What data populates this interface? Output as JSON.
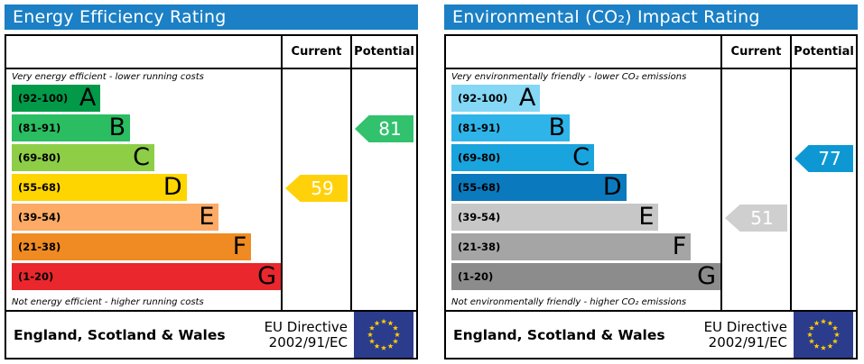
{
  "theme": {
    "header_bg": "#1b80c5",
    "border_color": "#000000",
    "flag_bg": "#2b3c8d",
    "flag_star": "#ffcc00"
  },
  "chart_data": [
    {
      "type": "bar",
      "title": "Energy Efficiency Rating",
      "columns": [
        "Current",
        "Potential"
      ],
      "top_caption": "Very energy efficient - lower running costs",
      "bottom_caption": "Not energy efficient - higher running costs",
      "bands": [
        {
          "letter": "A",
          "range": "(92-100)",
          "min": 92,
          "max": 100,
          "color": "#029a49",
          "width_pct": 33
        },
        {
          "letter": "B",
          "range": "(81-91)",
          "min": 81,
          "max": 91,
          "color": "#2abd62",
          "width_pct": 44
        },
        {
          "letter": "C",
          "range": "(69-80)",
          "min": 69,
          "max": 80,
          "color": "#8dce46",
          "width_pct": 53
        },
        {
          "letter": "D",
          "range": "(55-68)",
          "min": 55,
          "max": 68,
          "color": "#ffd500",
          "width_pct": 65
        },
        {
          "letter": "E",
          "range": "(39-54)",
          "min": 39,
          "max": 54,
          "color": "#fcaa65",
          "width_pct": 77
        },
        {
          "letter": "F",
          "range": "(21-38)",
          "min": 21,
          "max": 38,
          "color": "#ef8b22",
          "width_pct": 89
        },
        {
          "letter": "G",
          "range": "(1-20)",
          "min": 1,
          "max": 20,
          "color": "#e9272d",
          "width_pct": 100
        }
      ],
      "current": {
        "value": 59,
        "band": "D",
        "color": "#ffd10a"
      },
      "potential": {
        "value": 81,
        "band": "B",
        "color": "#32c16d"
      },
      "footer": {
        "region": "England, Scotland & Wales",
        "directive_line1": "EU Directive",
        "directive_line2": "2002/91/EC"
      }
    },
    {
      "type": "bar",
      "title": "Environmental (CO₂) Impact Rating",
      "columns": [
        "Current",
        "Potential"
      ],
      "top_caption": "Very environmentally friendly - lower CO₂ emissions",
      "bottom_caption": "Not environmentally friendly - higher CO₂ emissions",
      "bands": [
        {
          "letter": "A",
          "range": "(92-100)",
          "min": 92,
          "max": 100,
          "color": "#84d7f5",
          "width_pct": 33
        },
        {
          "letter": "B",
          "range": "(81-91)",
          "min": 81,
          "max": 91,
          "color": "#2fb4e9",
          "width_pct": 44
        },
        {
          "letter": "C",
          "range": "(69-80)",
          "min": 69,
          "max": 80,
          "color": "#19a4dd",
          "width_pct": 53
        },
        {
          "letter": "D",
          "range": "(55-68)",
          "min": 55,
          "max": 68,
          "color": "#0b79be",
          "width_pct": 65
        },
        {
          "letter": "E",
          "range": "(39-54)",
          "min": 39,
          "max": 54,
          "color": "#c7c7c7",
          "width_pct": 77
        },
        {
          "letter": "F",
          "range": "(21-38)",
          "min": 21,
          "max": 38,
          "color": "#a5a5a5",
          "width_pct": 89
        },
        {
          "letter": "G",
          "range": "(1-20)",
          "min": 1,
          "max": 20,
          "color": "#8c8c8c",
          "width_pct": 100
        }
      ],
      "current": {
        "value": 51,
        "band": "E",
        "color": "#cfcfcf"
      },
      "potential": {
        "value": 77,
        "band": "C",
        "color": "#0d98d4"
      },
      "footer": {
        "region": "England, Scotland & Wales",
        "directive_line1": "EU Directive",
        "directive_line2": "2002/91/EC"
      }
    }
  ]
}
